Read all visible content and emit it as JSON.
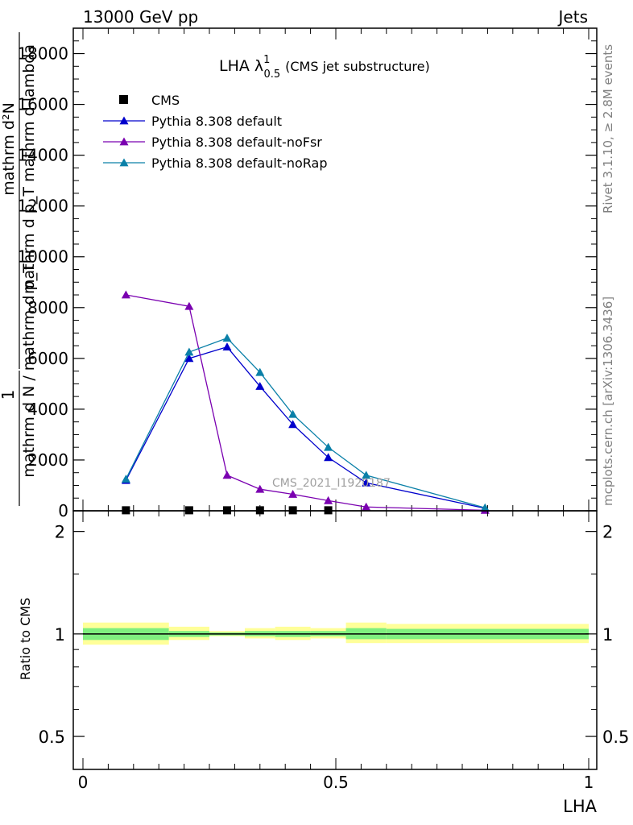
{
  "header": {
    "left": "13000 GeV pp",
    "right": "Jets"
  },
  "side_labels": {
    "rivet": "Rivet 3.1.10, ≥ 2.8M events",
    "mcplots": "mcplots.cern.ch [arXiv:1306.3436]"
  },
  "watermark": "CMS_2021_I1920187",
  "colors": {
    "cms": "#000000",
    "default": "#0000cc",
    "noFsr": "#7a00b0",
    "noRap": "#0a80a8",
    "band_yellow": "#ffff99",
    "band_green": "#7fef7f"
  },
  "chart_data": [
    {
      "type": "line",
      "title_main": "LHA λ",
      "title_sup": "1",
      "title_sub": "0.5",
      "title_note": "(CMS jet substructure)",
      "ylabel_num": "1",
      "ylabel_den": "mathrm d N / mathrm d p_T",
      "ylabel_num2": "mathrm d²N",
      "ylabel_den2": "mathrm d p_T mathrm d lambda",
      "ylim": [
        0,
        19000
      ],
      "yticks": [
        0,
        2000,
        4000,
        6000,
        8000,
        10000,
        12000,
        14000,
        16000,
        18000
      ],
      "ytick_labels": [
        "0",
        "2000",
        "4000",
        "6000",
        "8000",
        "10000",
        "12000",
        "14000",
        "16000",
        "18000"
      ],
      "xlim": [
        -0.02,
        1.0
      ],
      "legend_position": "top-left",
      "series": [
        {
          "name": "CMS",
          "key": "cms",
          "marker": "square",
          "x": [
            0.085,
            0.21,
            0.285,
            0.35,
            0.415,
            0.485
          ],
          "y": [
            20,
            20,
            20,
            20,
            20,
            20
          ]
        },
        {
          "name": "Pythia 8.308 default",
          "key": "default",
          "marker": "triangle",
          "x": [
            0.085,
            0.21,
            0.285,
            0.35,
            0.415,
            0.485,
            0.56,
            0.795
          ],
          "y": [
            1200,
            6000,
            6450,
            4900,
            3400,
            2100,
            1100,
            100
          ]
        },
        {
          "name": "Pythia 8.308 default-noFsr",
          "key": "noFsr",
          "marker": "triangle",
          "x": [
            0.085,
            0.21,
            0.285,
            0.35,
            0.415,
            0.485,
            0.56,
            0.795
          ],
          "y": [
            8500,
            8050,
            1400,
            850,
            650,
            400,
            150,
            20
          ]
        },
        {
          "name": "Pythia 8.308 default-noRap",
          "key": "noRap",
          "marker": "triangle",
          "x": [
            0.085,
            0.21,
            0.285,
            0.35,
            0.415,
            0.485,
            0.56,
            0.795
          ],
          "y": [
            1250,
            6250,
            6800,
            5450,
            3800,
            2500,
            1400,
            120
          ]
        }
      ]
    },
    {
      "type": "area",
      "ylabel": "Ratio to CMS",
      "xlabel": "LHA",
      "ylim": [
        0.4,
        2.3
      ],
      "log_y": true,
      "yticks": [
        0.5,
        1,
        2
      ],
      "ytick_labels": [
        "0.5",
        "1",
        "2"
      ],
      "xlim": [
        -0.02,
        1.0
      ],
      "xticks": [
        0,
        0.5,
        1
      ],
      "xtick_labels": [
        "0",
        "0.5",
        "1"
      ],
      "bands": [
        {
          "x0": 0.0,
          "x1": 0.17,
          "yellow": [
            0.93,
            1.08
          ],
          "green": [
            0.96,
            1.04
          ]
        },
        {
          "x0": 0.17,
          "x1": 0.25,
          "yellow": [
            0.96,
            1.05
          ],
          "green": [
            0.98,
            1.02
          ]
        },
        {
          "x0": 0.25,
          "x1": 0.32,
          "yellow": [
            0.985,
            1.02
          ],
          "green": [
            0.99,
            1.01
          ]
        },
        {
          "x0": 0.32,
          "x1": 0.38,
          "yellow": [
            0.97,
            1.04
          ],
          "green": [
            0.985,
            1.02
          ]
        },
        {
          "x0": 0.38,
          "x1": 0.45,
          "yellow": [
            0.96,
            1.05
          ],
          "green": [
            0.98,
            1.02
          ]
        },
        {
          "x0": 0.45,
          "x1": 0.52,
          "yellow": [
            0.97,
            1.04
          ],
          "green": [
            0.985,
            1.02
          ]
        },
        {
          "x0": 0.52,
          "x1": 0.6,
          "yellow": [
            0.94,
            1.08
          ],
          "green": [
            0.965,
            1.04
          ]
        },
        {
          "x0": 0.6,
          "x1": 1.0,
          "yellow": [
            0.94,
            1.07
          ],
          "green": [
            0.965,
            1.035
          ]
        }
      ]
    }
  ]
}
